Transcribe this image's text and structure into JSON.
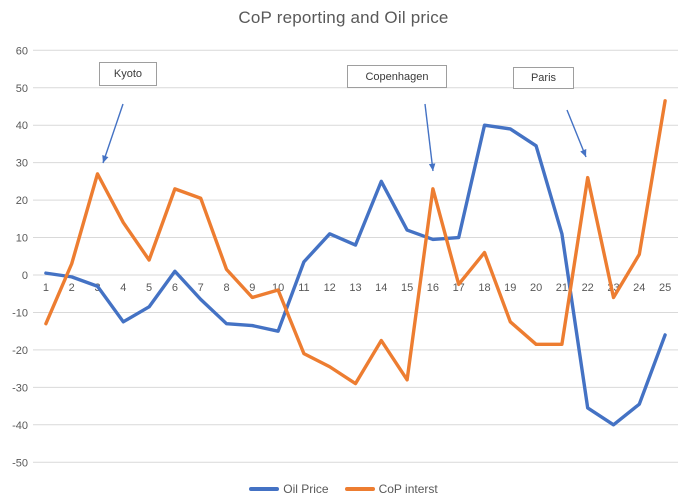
{
  "chart_data": {
    "type": "line",
    "title": "CoP reporting and Oil price",
    "x": [
      1,
      2,
      3,
      4,
      5,
      6,
      7,
      8,
      9,
      10,
      11,
      12,
      13,
      14,
      15,
      16,
      17,
      18,
      19,
      20,
      21,
      22,
      23,
      24,
      25
    ],
    "x_tick_labels": [
      "1",
      "2",
      "3",
      "4",
      "5",
      "6",
      "7",
      "8",
      "9",
      "10",
      "11",
      "12",
      "13",
      "14",
      "15",
      "16",
      "17",
      "18",
      "19",
      "20",
      "21",
      "22",
      "23",
      "24",
      "25"
    ],
    "y_ticks": [
      60,
      50,
      40,
      30,
      20,
      10,
      0,
      -10,
      -20,
      -30,
      -40,
      -50
    ],
    "y_tick_labels": [
      "60",
      "50",
      "40",
      "30",
      "20",
      "10",
      "0",
      "-10",
      "-20",
      "-30",
      "-40",
      "-50"
    ],
    "ylim": [
      -50,
      60
    ],
    "grid": "horizontal",
    "legend_position": "bottom-center",
    "series": [
      {
        "name": "Oil Price",
        "color": "#4472C4",
        "values": [
          0.5,
          -0.5,
          -3,
          -12.5,
          -8.5,
          1,
          -6.5,
          -13,
          -13.5,
          -15,
          3.5,
          11,
          8,
          25,
          12,
          9.5,
          10,
          40,
          39,
          34.5,
          11,
          -35.5,
          -40,
          -34.5,
          -16
        ]
      },
      {
        "name": "CoP interst",
        "color": "#ED7D31",
        "values": [
          -13,
          3,
          27,
          14,
          4,
          23,
          20.5,
          1.5,
          -6,
          -4,
          -21,
          -24.5,
          -29,
          -17.5,
          -28,
          23,
          -2.5,
          6,
          -12.5,
          -18.5,
          -18.5,
          26,
          -6,
          5.5,
          46.5
        ]
      }
    ],
    "annotations": [
      {
        "label": "Kyoto",
        "points_to_x": 3,
        "points_to_value": 27,
        "arrow_from": [
          123,
          104
        ],
        "arrow_to": [
          103,
          163
        ]
      },
      {
        "label": "Copenhagen",
        "points_to_x": 16,
        "points_to_value": 23,
        "arrow_from": [
          425,
          104
        ],
        "arrow_to": [
          433,
          171
        ]
      },
      {
        "label": "Paris",
        "points_to_x": 22,
        "points_to_value": 26,
        "arrow_from": [
          567,
          110
        ],
        "arrow_to": [
          586,
          157
        ]
      }
    ],
    "annotation_arrow_color": "#4472C4",
    "gridline_color": "#d9d9d9",
    "axis_label_color": "#595959",
    "title_color": "#595959"
  }
}
